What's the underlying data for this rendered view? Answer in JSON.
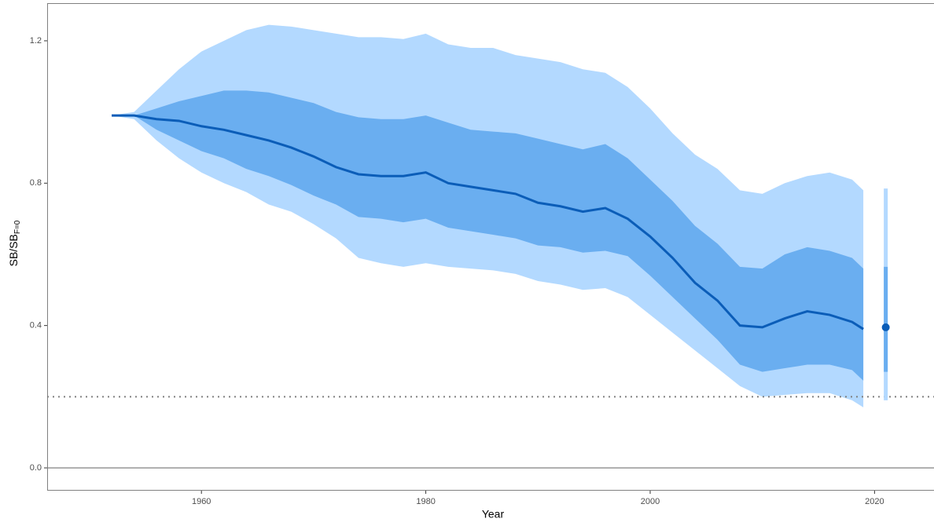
{
  "chart_data": {
    "type": "band-line",
    "x_label": "Year",
    "y_label": "SB/SB",
    "y_label_subscript": "F=0",
    "x": [
      1952,
      1954,
      1956,
      1958,
      1960,
      1962,
      1964,
      1966,
      1968,
      1970,
      1972,
      1974,
      1976,
      1978,
      1980,
      1982,
      1984,
      1986,
      1988,
      1990,
      1992,
      1994,
      1996,
      1998,
      2000,
      2002,
      2004,
      2006,
      2008,
      2010,
      2012,
      2014,
      2016,
      2018,
      2019
    ],
    "median": [
      0.99,
      0.99,
      0.98,
      0.975,
      0.96,
      0.95,
      0.935,
      0.92,
      0.9,
      0.875,
      0.845,
      0.825,
      0.82,
      0.82,
      0.83,
      0.8,
      0.79,
      0.78,
      0.77,
      0.745,
      0.735,
      0.72,
      0.73,
      0.7,
      0.65,
      0.59,
      0.52,
      0.47,
      0.4,
      0.395,
      0.42,
      0.44,
      0.43,
      0.41,
      0.39
    ],
    "inner_band": {
      "lower": [
        0.99,
        0.99,
        0.95,
        0.92,
        0.89,
        0.87,
        0.84,
        0.82,
        0.795,
        0.765,
        0.74,
        0.705,
        0.7,
        0.69,
        0.7,
        0.675,
        0.665,
        0.655,
        0.645,
        0.625,
        0.62,
        0.605,
        0.61,
        0.595,
        0.54,
        0.48,
        0.42,
        0.36,
        0.29,
        0.27,
        0.28,
        0.29,
        0.29,
        0.275,
        0.245
      ],
      "upper": [
        0.99,
        0.99,
        1.01,
        1.03,
        1.045,
        1.06,
        1.06,
        1.055,
        1.04,
        1.025,
        1.0,
        0.985,
        0.98,
        0.98,
        0.99,
        0.97,
        0.95,
        0.945,
        0.94,
        0.925,
        0.91,
        0.895,
        0.91,
        0.87,
        0.81,
        0.75,
        0.68,
        0.63,
        0.565,
        0.56,
        0.6,
        0.62,
        0.61,
        0.59,
        0.56
      ]
    },
    "outer_band": {
      "lower": [
        0.99,
        0.98,
        0.92,
        0.87,
        0.83,
        0.8,
        0.775,
        0.74,
        0.72,
        0.685,
        0.645,
        0.59,
        0.575,
        0.565,
        0.575,
        0.565,
        0.56,
        0.555,
        0.545,
        0.525,
        0.515,
        0.5,
        0.505,
        0.48,
        0.43,
        0.38,
        0.33,
        0.28,
        0.23,
        0.2,
        0.205,
        0.21,
        0.21,
        0.19,
        0.17
      ],
      "upper": [
        0.99,
        1.0,
        1.06,
        1.12,
        1.17,
        1.2,
        1.23,
        1.245,
        1.24,
        1.23,
        1.22,
        1.21,
        1.21,
        1.205,
        1.22,
        1.19,
        1.18,
        1.18,
        1.16,
        1.15,
        1.14,
        1.12,
        1.11,
        1.07,
        1.01,
        0.94,
        0.88,
        0.84,
        0.78,
        0.77,
        0.8,
        0.82,
        0.83,
        0.81,
        0.78
      ]
    },
    "projection": {
      "x": 2021,
      "value": 0.395,
      "inner": [
        0.27,
        0.565
      ],
      "outer": [
        0.19,
        0.785
      ]
    },
    "reference_lines": [
      {
        "y": 0,
        "style": "solid"
      },
      {
        "y": 0.2,
        "style": "dotted"
      }
    ],
    "colors": {
      "line": "#0b5db8",
      "inner": "#6aaef0",
      "outer": "#b3d9ff",
      "reference": "#808080"
    },
    "xlim": [
      1946.25,
      2025.3
    ],
    "ylim": [
      -0.064,
      1.3036
    ],
    "xticks": [
      1960,
      1980,
      2000,
      2020
    ],
    "yticks": [
      {
        "value": 0,
        "label": "0.0"
      },
      0.4,
      0.8,
      1.2
    ]
  }
}
